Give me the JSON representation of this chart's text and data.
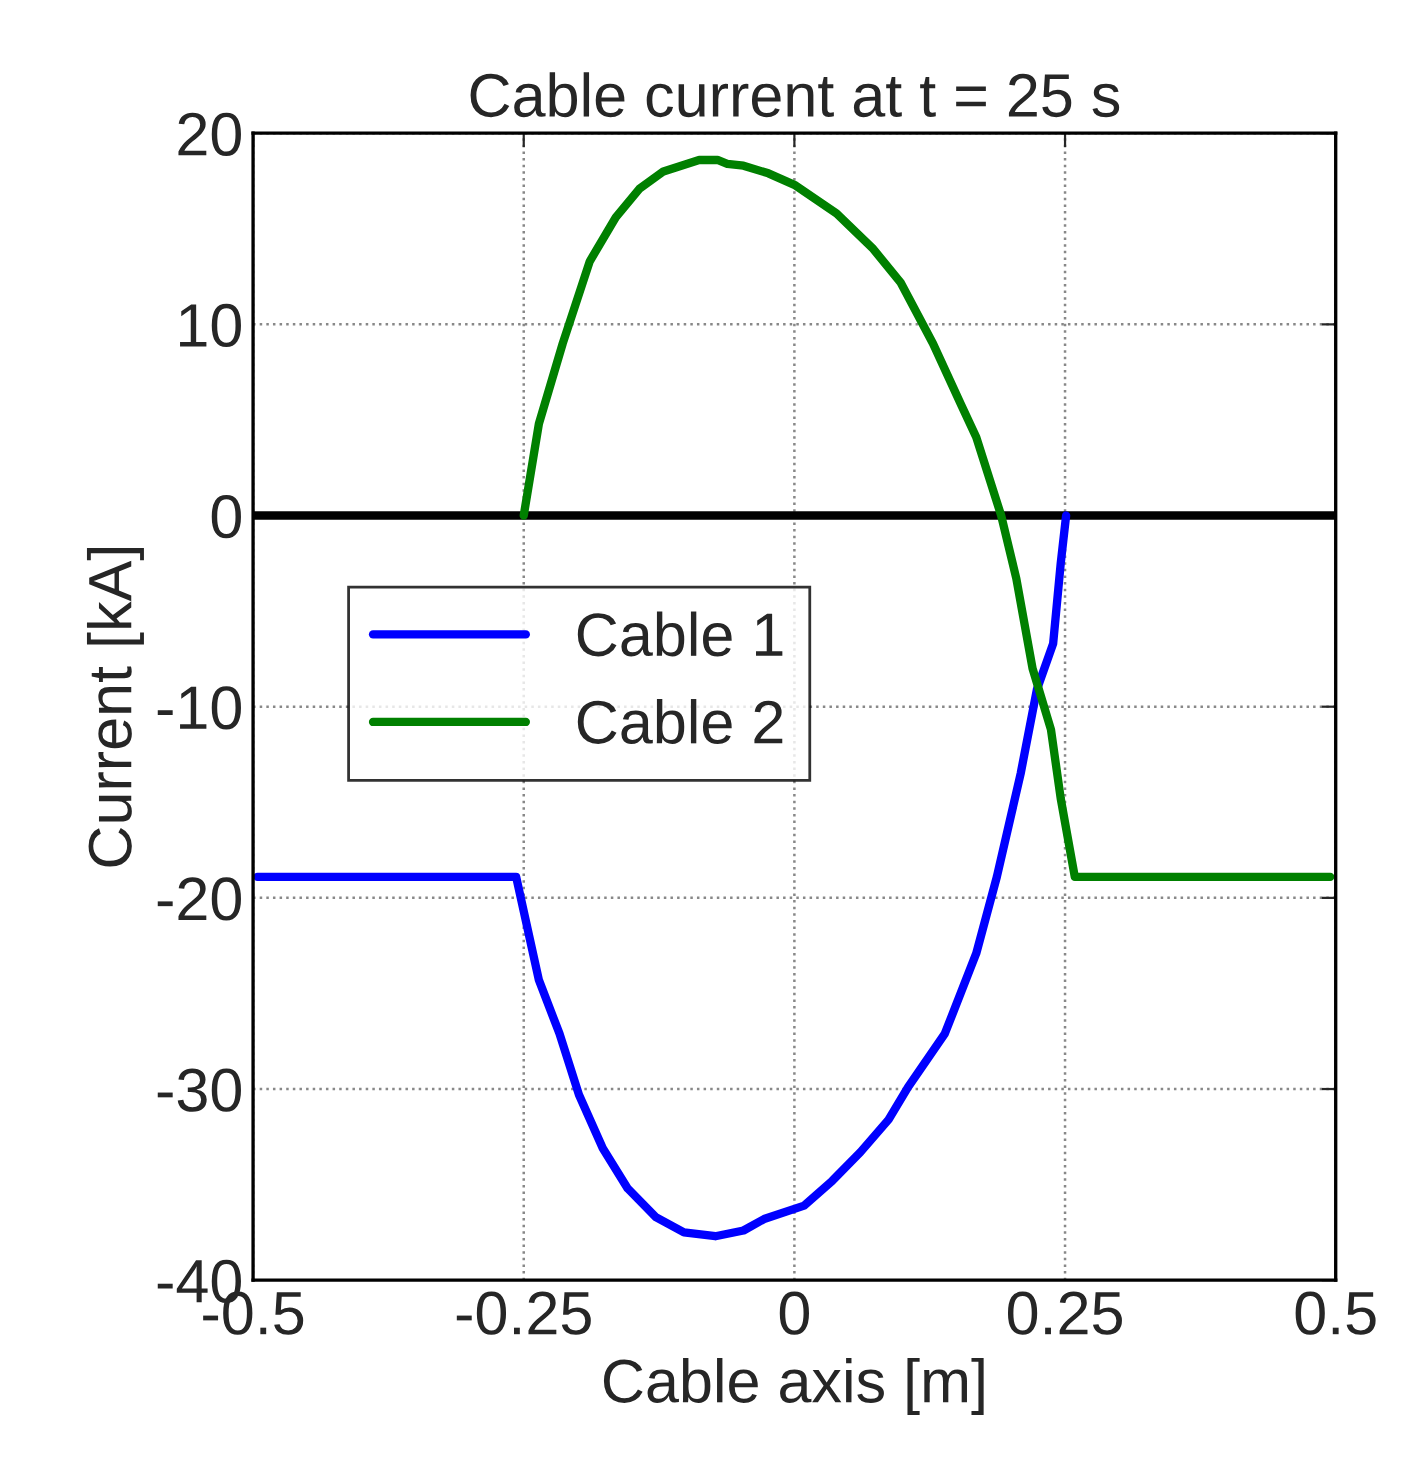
{
  "chart_data": {
    "type": "line",
    "title": "Cable current at t = 25 s",
    "xlabel": "Cable axis [m]",
    "ylabel": "Current [kA]",
    "xlim": [
      -0.5,
      0.5
    ],
    "xticks": [
      -0.5,
      -0.25,
      0,
      0.25,
      0.5
    ],
    "ylim": [
      -40,
      20
    ],
    "yticks": [
      -40,
      -30,
      -20,
      -10,
      0,
      10,
      20
    ],
    "grid": true,
    "legend": "left",
    "line_style": "solid",
    "ref_lines": [
      {
        "axis": "y",
        "value": 0,
        "color": "#000000",
        "line_style": "solid"
      }
    ],
    "series": [
      {
        "name": "Cable 1",
        "color": "#0000ff",
        "x": [
          -0.496,
          -0.257,
          -0.236,
          -0.217,
          -0.199,
          -0.177,
          -0.154,
          -0.128,
          -0.102,
          -0.073,
          -0.047,
          -0.028,
          0.009,
          0.035,
          0.061,
          0.087,
          0.105,
          0.139,
          0.168,
          0.187,
          0.209,
          0.224,
          0.239,
          0.246,
          0.251
        ],
        "values": [
          -18.9,
          -18.9,
          -24.3,
          -27.1,
          -30.3,
          -33.1,
          -35.2,
          -36.7,
          -37.5,
          -37.7,
          -37.4,
          -36.8,
          -36.1,
          -34.8,
          -33.3,
          -31.6,
          -29.9,
          -27.1,
          -22.9,
          -18.9,
          -13.5,
          -9.1,
          -6.7,
          -2.5,
          0
        ]
      },
      {
        "name": "Cable 2",
        "color": "#008000",
        "x": [
          -0.25,
          -0.236,
          -0.214,
          -0.189,
          -0.165,
          -0.143,
          -0.121,
          -0.088,
          -0.071,
          -0.062,
          -0.047,
          -0.024,
          0,
          0.039,
          0.072,
          0.098,
          0.128,
          0.154,
          0.168,
          0.191,
          0.205,
          0.22,
          0.237,
          0.246,
          0.259,
          0.495
        ],
        "values": [
          0,
          4.8,
          9.0,
          13.3,
          15.6,
          17.1,
          18.0,
          18.6,
          18.6,
          18.4,
          18.3,
          17.9,
          17.3,
          15.8,
          14.0,
          12.2,
          9.0,
          5.8,
          4.1,
          0,
          -3.3,
          -8.0,
          -11.2,
          -14.8,
          -18.9,
          -18.9
        ]
      }
    ]
  }
}
